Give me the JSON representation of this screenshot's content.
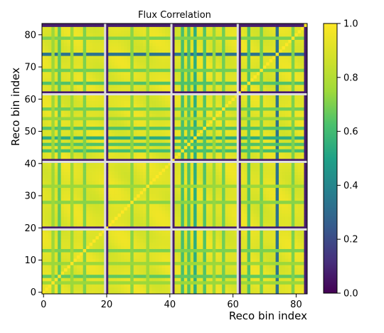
{
  "chart_data": {
    "type": "heatmap",
    "title": "Flux Correlation",
    "xlabel": "Reco bin index",
    "ylabel": "Reco bin index",
    "n_bins": 84,
    "xlim": [
      0,
      84
    ],
    "ylim": [
      0,
      84
    ],
    "x_ticks": [
      0,
      20,
      40,
      60,
      80
    ],
    "y_ticks": [
      0,
      10,
      20,
      30,
      40,
      50,
      60,
      70,
      80
    ],
    "block_boundaries": [
      20,
      41,
      62
    ],
    "colorbar": {
      "colormap": "viridis",
      "min": 0.0,
      "max": 1.0,
      "ticks": [
        "0.0",
        "0.2",
        "0.4",
        "0.6",
        "0.8",
        "1.0"
      ]
    },
    "value_range": [
      0.0,
      1.0
    ],
    "diagonal_value": 1.0,
    "typical_offdiagonal": 0.93,
    "block_edge_bins": [
      20,
      41,
      62,
      83
    ],
    "block_edge_value": 0.08,
    "low_correlation_bins": [
      {
        "bin": 74,
        "value": 0.38
      },
      {
        "bin": 48,
        "value": 0.62
      },
      {
        "bin": 5,
        "value": 0.75
      },
      {
        "bin": 44,
        "value": 0.7
      },
      {
        "bin": 46,
        "value": 0.72
      },
      {
        "bin": 51,
        "value": 0.72
      },
      {
        "bin": 65,
        "value": 0.72
      },
      {
        "bin": 13,
        "value": 0.8
      },
      {
        "bin": 28,
        "value": 0.82
      },
      {
        "bin": 57,
        "value": 0.78
      },
      {
        "bin": 69,
        "value": 0.78
      },
      {
        "bin": 79,
        "value": 0.8
      },
      {
        "bin": 9,
        "value": 0.85
      },
      {
        "bin": 33,
        "value": 0.85
      },
      {
        "bin": 54,
        "value": 0.84
      },
      {
        "bin": 3,
        "value": 0.85
      }
    ]
  }
}
